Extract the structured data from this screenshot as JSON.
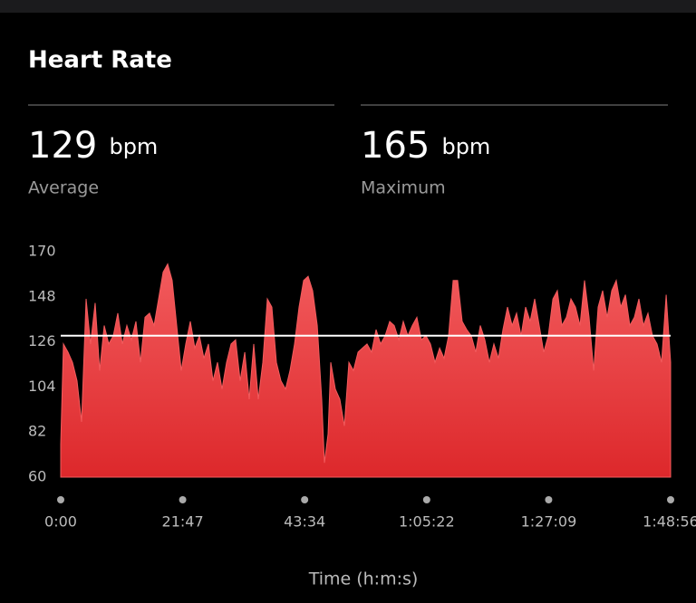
{
  "title": "Heart Rate",
  "stats": [
    {
      "value": 129,
      "unit": "bpm",
      "label": "Average"
    },
    {
      "value": 165,
      "unit": "bpm",
      "label": "Maximum"
    }
  ],
  "chart_data": {
    "type": "area",
    "x_label": "Time (h:m:s)",
    "color": "#f25b5d",
    "xlim": [
      0,
      6536
    ],
    "xticks": [
      {
        "value": 0,
        "label": "0:00"
      },
      {
        "value": 1307,
        "label": "21:47"
      },
      {
        "value": 2614,
        "label": "43:34"
      },
      {
        "value": 3922,
        "label": "1:05:22"
      },
      {
        "value": 5229,
        "label": "1:27:09"
      },
      {
        "value": 6536,
        "label": "1:48:56"
      }
    ],
    "ylim": [
      60,
      170
    ],
    "yticks": [
      60,
      82,
      104,
      126,
      148,
      170
    ],
    "x": [
      0,
      29,
      78,
      126,
      175,
      223,
      272,
      320,
      369,
      418,
      466,
      515,
      563,
      612,
      660,
      709,
      758,
      806,
      855,
      903,
      952,
      1000,
      1049,
      1097,
      1146,
      1195,
      1243,
      1292,
      1340,
      1389,
      1437,
      1486,
      1534,
      1583,
      1632,
      1680,
      1729,
      1777,
      1826,
      1874,
      1923,
      1972,
      2020,
      2069,
      2117,
      2166,
      2214,
      2263,
      2311,
      2360,
      2409,
      2457,
      2506,
      2554,
      2603,
      2651,
      2700,
      2749,
      2797,
      2826,
      2865,
      2894,
      2943,
      2991,
      3040,
      3088,
      3137,
      3186,
      3234,
      3283,
      3331,
      3380,
      3428,
      3477,
      3525,
      3574,
      3623,
      3671,
      3720,
      3768,
      3817,
      3865,
      3914,
      3962,
      4011,
      4060,
      4108,
      4157,
      4205,
      4254,
      4302,
      4351,
      4399,
      4448,
      4497,
      4545,
      4594,
      4642,
      4691,
      4739,
      4788,
      4837,
      4885,
      4934,
      4982,
      5031,
      5079,
      5128,
      5176,
      5225,
      5274,
      5322,
      5371,
      5419,
      5468,
      5516,
      5565,
      5613,
      5662,
      5711,
      5759,
      5808,
      5856,
      5905,
      5953,
      6002,
      6051,
      6099,
      6148,
      6196,
      6245,
      6293,
      6342,
      6390,
      6439,
      6488,
      6536
    ],
    "values": [
      76,
      125,
      121,
      116,
      107,
      87,
      147,
      125,
      145,
      112,
      134,
      125,
      129,
      140,
      125,
      134,
      127,
      136,
      116,
      138,
      140,
      134,
      147,
      160,
      164,
      156,
      134,
      112,
      125,
      136,
      123,
      129,
      118,
      125,
      107,
      116,
      103,
      116,
      125,
      127,
      107,
      121,
      98,
      125,
      98,
      116,
      147,
      143,
      116,
      107,
      103,
      112,
      125,
      143,
      156,
      158,
      151,
      134,
      98,
      67,
      81,
      116,
      103,
      98,
      85,
      116,
      112,
      121,
      123,
      125,
      121,
      132,
      125,
      129,
      136,
      134,
      127,
      136,
      129,
      134,
      138,
      127,
      129,
      125,
      116,
      123,
      118,
      129,
      156,
      156,
      136,
      132,
      129,
      121,
      134,
      127,
      116,
      125,
      118,
      132,
      143,
      134,
      140,
      129,
      143,
      136,
      147,
      134,
      121,
      129,
      147,
      151,
      134,
      138,
      147,
      143,
      134,
      156,
      138,
      112,
      143,
      151,
      138,
      151,
      156,
      143,
      149,
      134,
      138,
      147,
      134,
      140,
      129,
      125,
      116,
      149,
      116
    ]
  }
}
